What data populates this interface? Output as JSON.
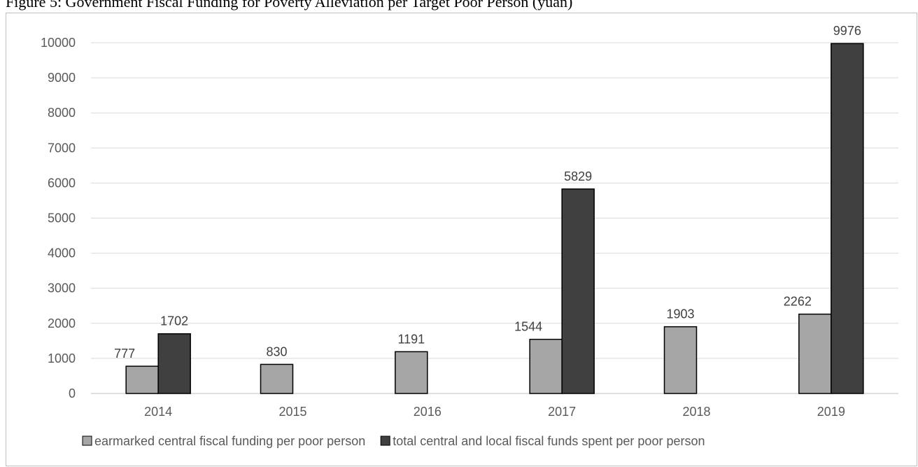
{
  "chart_data": {
    "type": "bar",
    "title": "Figure 5: Government Fiscal Funding for Poverty Alleviation per Target Poor Person (yuan)",
    "categories": [
      "2014",
      "2015",
      "2016",
      "2017",
      "2018",
      "2019"
    ],
    "series": [
      {
        "name": "earmarked central fiscal funding per poor person",
        "values": [
          777,
          830,
          1191,
          1544,
          1903,
          2262
        ],
        "color": "#a6a6a6"
      },
      {
        "name": "total central and local fiscal funds spent per poor person",
        "values": [
          1702,
          null,
          null,
          5829,
          null,
          9976
        ],
        "color": "#404040"
      }
    ],
    "ylim": [
      0,
      10000
    ],
    "yticks": [
      0,
      1000,
      2000,
      3000,
      4000,
      5000,
      6000,
      7000,
      8000,
      9000,
      10000
    ],
    "grid": true,
    "legend": "bottom",
    "xlabel": "",
    "ylabel": ""
  }
}
